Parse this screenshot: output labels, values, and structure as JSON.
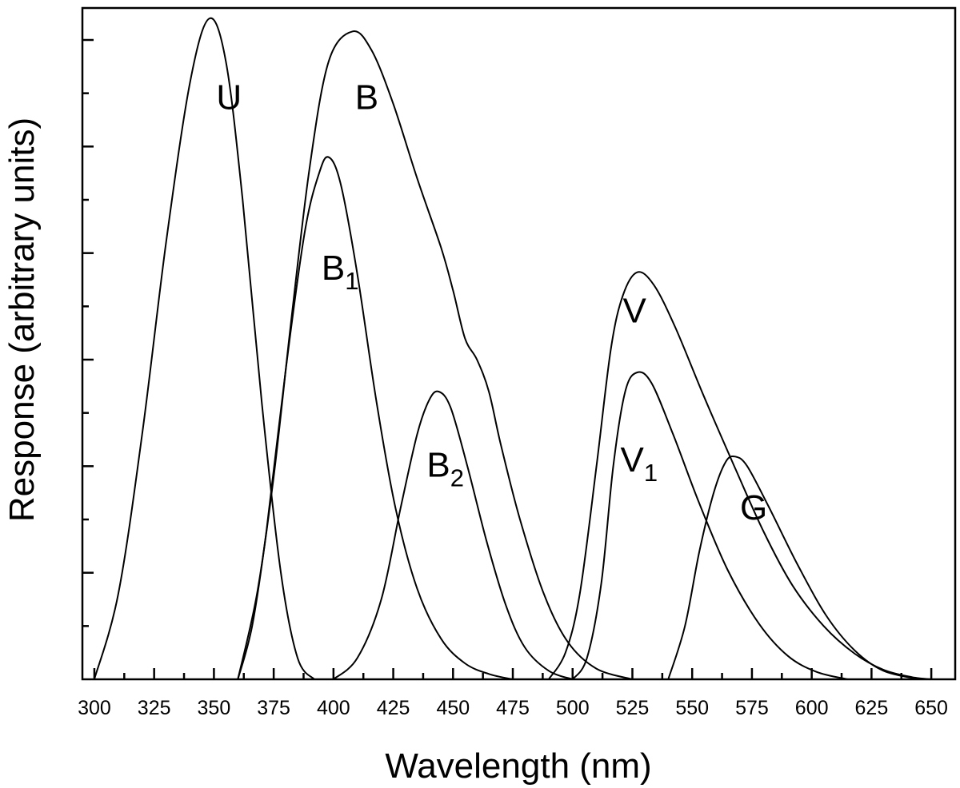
{
  "chart_data": {
    "type": "line",
    "title": "",
    "xlabel": "Wavelength  (nm)",
    "ylabel": "Response  (arbitrary units)",
    "xlim": [
      295,
      660
    ],
    "ylim": [
      0,
      6.3
    ],
    "x_ticks": [
      300,
      325,
      350,
      375,
      400,
      425,
      450,
      475,
      500,
      525,
      550,
      575,
      600,
      625,
      650
    ],
    "y_tick_labels_shown": false,
    "series": [
      {
        "name": "U",
        "label": "U",
        "sub": "",
        "points": [
          [
            300,
            0
          ],
          [
            310,
            0.8
          ],
          [
            320,
            2.3
          ],
          [
            330,
            4.1
          ],
          [
            340,
            5.6
          ],
          [
            348,
            6.2
          ],
          [
            355,
            5.8
          ],
          [
            362,
            4.5
          ],
          [
            370,
            2.6
          ],
          [
            378,
            1.0
          ],
          [
            385,
            0.2
          ],
          [
            392,
            0
          ]
        ]
      },
      {
        "name": "B",
        "label": "B",
        "sub": "",
        "points": [
          [
            360,
            0
          ],
          [
            368,
            0.8
          ],
          [
            375,
            1.9
          ],
          [
            382,
            3.3
          ],
          [
            390,
            4.8
          ],
          [
            398,
            5.8
          ],
          [
            408,
            6.08
          ],
          [
            416,
            5.9
          ],
          [
            425,
            5.4
          ],
          [
            435,
            4.7
          ],
          [
            445,
            4.05
          ],
          [
            450,
            3.65
          ],
          [
            455,
            3.2
          ],
          [
            460,
            3.0
          ],
          [
            465,
            2.7
          ],
          [
            470,
            2.2
          ],
          [
            478,
            1.5
          ],
          [
            488,
            0.8
          ],
          [
            498,
            0.35
          ],
          [
            510,
            0.1
          ],
          [
            525,
            0
          ]
        ]
      },
      {
        "name": "B1",
        "label": "B",
        "sub": "1",
        "points": [
          [
            360,
            0
          ],
          [
            366,
            0.5
          ],
          [
            372,
            1.4
          ],
          [
            380,
            2.9
          ],
          [
            388,
            4.2
          ],
          [
            394,
            4.75
          ],
          [
            398,
            4.9
          ],
          [
            403,
            4.65
          ],
          [
            410,
            3.8
          ],
          [
            418,
            2.6
          ],
          [
            426,
            1.6
          ],
          [
            435,
            0.85
          ],
          [
            445,
            0.38
          ],
          [
            455,
            0.15
          ],
          [
            465,
            0.05
          ],
          [
            475,
            0
          ]
        ]
      },
      {
        "name": "B2",
        "label": "B",
        "sub": "2",
        "points": [
          [
            400,
            0
          ],
          [
            410,
            0.2
          ],
          [
            420,
            0.75
          ],
          [
            428,
            1.6
          ],
          [
            435,
            2.3
          ],
          [
            440,
            2.62
          ],
          [
            444,
            2.7
          ],
          [
            449,
            2.55
          ],
          [
            456,
            2.0
          ],
          [
            464,
            1.3
          ],
          [
            472,
            0.7
          ],
          [
            480,
            0.3
          ],
          [
            490,
            0.08
          ],
          [
            500,
            0
          ]
        ]
      },
      {
        "name": "V",
        "label": "V",
        "sub": "",
        "points": [
          [
            490,
            0
          ],
          [
            497,
            0.25
          ],
          [
            503,
            0.8
          ],
          [
            510,
            2.0
          ],
          [
            516,
            3.1
          ],
          [
            521,
            3.6
          ],
          [
            527,
            3.82
          ],
          [
            534,
            3.7
          ],
          [
            543,
            3.3
          ],
          [
            555,
            2.65
          ],
          [
            568,
            1.98
          ],
          [
            580,
            1.38
          ],
          [
            592,
            0.88
          ],
          [
            605,
            0.5
          ],
          [
            618,
            0.24
          ],
          [
            630,
            0.09
          ],
          [
            642,
            0.02
          ],
          [
            650,
            0
          ]
        ]
      },
      {
        "name": "V1",
        "label": "V",
        "sub": "1",
        "points": [
          [
            500,
            0
          ],
          [
            506,
            0.2
          ],
          [
            512,
            0.9
          ],
          [
            517,
            2.0
          ],
          [
            522,
            2.7
          ],
          [
            527,
            2.88
          ],
          [
            533,
            2.78
          ],
          [
            542,
            2.3
          ],
          [
            553,
            1.65
          ],
          [
            565,
            1.02
          ],
          [
            578,
            0.52
          ],
          [
            590,
            0.22
          ],
          [
            602,
            0.07
          ],
          [
            615,
            0
          ]
        ]
      },
      {
        "name": "G",
        "label": "G",
        "sub": "",
        "points": [
          [
            540,
            0
          ],
          [
            547,
            0.5
          ],
          [
            553,
            1.2
          ],
          [
            559,
            1.75
          ],
          [
            564,
            2.04
          ],
          [
            568,
            2.09
          ],
          [
            573,
            2.0
          ],
          [
            582,
            1.62
          ],
          [
            594,
            1.08
          ],
          [
            606,
            0.6
          ],
          [
            618,
            0.27
          ],
          [
            630,
            0.08
          ],
          [
            645,
            0
          ]
        ]
      }
    ],
    "annotations": [
      {
        "series": "U",
        "text": "U",
        "sub": "",
        "x": 351,
        "y": 5.35
      },
      {
        "series": "B",
        "text": "B",
        "sub": "",
        "x": 409,
        "y": 5.35
      },
      {
        "series": "B1",
        "text": "B",
        "sub": "1",
        "x": 395,
        "y": 3.75
      },
      {
        "series": "B2",
        "text": "B",
        "sub": "2",
        "x": 439,
        "y": 1.9
      },
      {
        "series": "V",
        "text": "V",
        "sub": "",
        "x": 521,
        "y": 3.35
      },
      {
        "series": "V1",
        "text": "V",
        "sub": "1",
        "x": 520,
        "y": 1.95
      },
      {
        "series": "G",
        "text": "G",
        "sub": "",
        "x": 570,
        "y": 1.5
      }
    ]
  }
}
